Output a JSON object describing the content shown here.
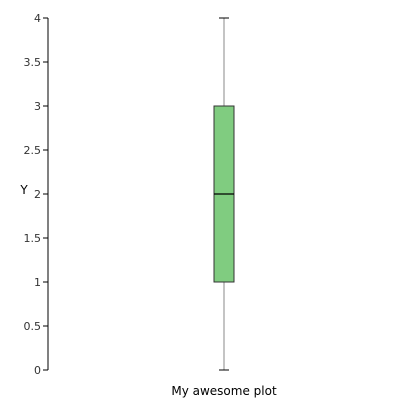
{
  "chart_data": {
    "type": "box",
    "title": "",
    "xlabel": "",
    "ylabel": "Y",
    "ylim": [
      0,
      4
    ],
    "yticks": [
      0,
      0.5,
      1,
      1.5,
      2,
      2.5,
      3,
      3.5,
      4
    ],
    "grid": false,
    "legend": "none",
    "boxes": [
      {
        "category": "My awesome plot",
        "min": 0,
        "q1": 1,
        "median": 2,
        "q3": 3,
        "max": 4,
        "color": "#80cc80"
      }
    ]
  }
}
